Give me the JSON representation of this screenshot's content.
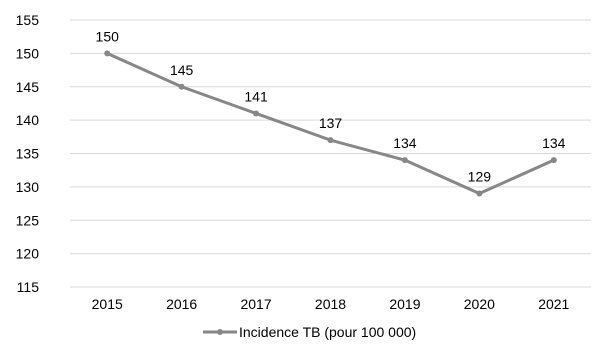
{
  "chart_data": {
    "type": "line",
    "title": "",
    "xlabel": "",
    "ylabel": "",
    "categories": [
      "2015",
      "2016",
      "2017",
      "2018",
      "2019",
      "2020",
      "2021"
    ],
    "series": [
      {
        "name": "Incidence TB (pour 100 000)",
        "values": [
          150,
          145,
          141,
          137,
          134,
          129,
          134
        ],
        "data_labels": [
          "150",
          "145",
          "141",
          "137",
          "134",
          "129",
          "134"
        ],
        "color": "#878787"
      }
    ],
    "ylim": [
      115,
      155
    ],
    "y_ticks": [
      "115",
      "120",
      "125",
      "130",
      "135",
      "140",
      "145",
      "150",
      "155"
    ],
    "grid": true,
    "gridline_color": "#d9d9d9",
    "legend_position": "bottom"
  }
}
